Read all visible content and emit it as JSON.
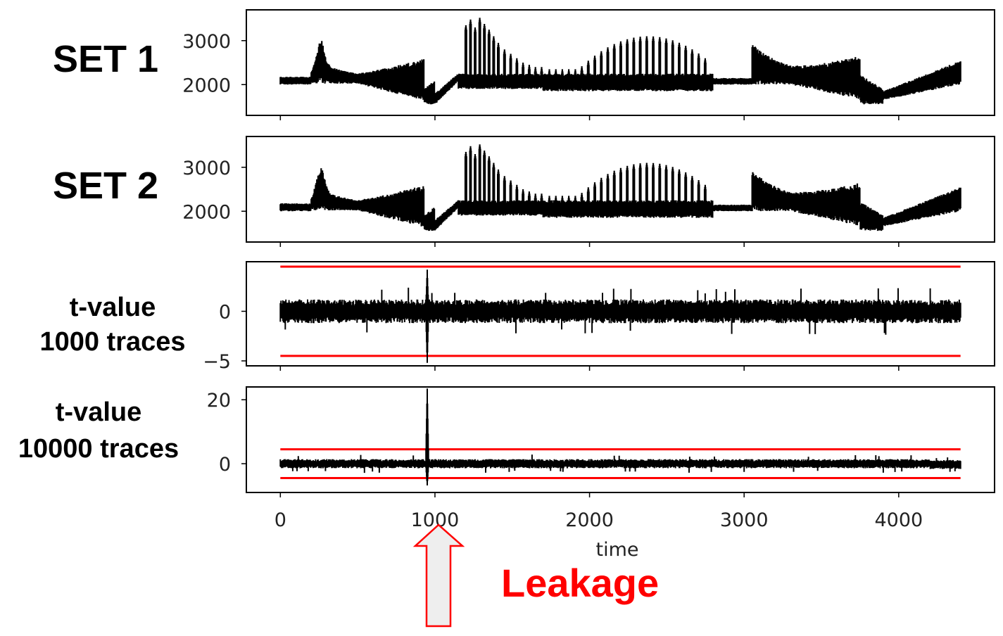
{
  "figure": {
    "x_axis_label": "time",
    "x_ticks": [
      "0",
      "1000",
      "2000",
      "3000",
      "4000"
    ],
    "annotation": {
      "text": "Leakage",
      "color": "#ff0000",
      "points_to_time": 1000
    },
    "colors": {
      "trace": "#000000",
      "threshold": "#ff0000",
      "arrow_fill": "#eeeeee",
      "arrow_stroke": "#ff0000"
    }
  },
  "rows": [
    {
      "label_lines": [
        "SET 1"
      ]
    },
    {
      "label_lines": [
        "SET 2"
      ]
    },
    {
      "label_lines": [
        "t-value",
        "1000 traces"
      ]
    },
    {
      "label_lines": [
        "t-value",
        "10000 traces"
      ]
    }
  ],
  "chart_data": [
    {
      "type": "line",
      "series": [
        {
          "values_summary": "power trace, baseline ~2050, peaks ~3500 near time 1200-1400"
        }
      ],
      "x_range": [
        0,
        4400
      ],
      "xlim": [
        -220,
        4620
      ],
      "ylim": [
        1300,
        3700
      ],
      "y_ticks": [
        "2000",
        "3000"
      ],
      "y_tick_values": [
        2000,
        3000
      ],
      "x_ticks": [
        0,
        1000,
        2000,
        3000,
        4000
      ],
      "thresholds": []
    },
    {
      "type": "line",
      "series": [
        {
          "values_summary": "power trace, nearly identical to SET 1"
        }
      ],
      "x_range": [
        0,
        4400
      ],
      "xlim": [
        -220,
        4620
      ],
      "ylim": [
        1300,
        3700
      ],
      "y_ticks": [
        "2000",
        "3000"
      ],
      "y_tick_values": [
        2000,
        3000
      ],
      "x_ticks": [
        0,
        1000,
        2000,
        3000,
        4000
      ],
      "thresholds": []
    },
    {
      "type": "line",
      "series": [
        {
          "values_summary": "t-value noise within about +/-1, spike to +4 and -5 near time 950"
        }
      ],
      "x_range": [
        0,
        4400
      ],
      "xlim": [
        -220,
        4620
      ],
      "ylim": [
        -5.5,
        5
      ],
      "y_ticks": [
        "0",
        "−5"
      ],
      "y_tick_values": [
        0,
        -5
      ],
      "x_ticks": [
        0,
        1000,
        2000,
        3000,
        4000
      ],
      "thresholds": [
        4.5,
        -4.5
      ]
    },
    {
      "type": "line",
      "series": [
        {
          "values_summary": "t-value noise within about +/-1, spike to +24 and -7 near time 950"
        }
      ],
      "x_range": [
        0,
        4400
      ],
      "xlim": [
        -220,
        4620
      ],
      "ylim": [
        -9,
        24
      ],
      "y_ticks": [
        "20",
        "0"
      ],
      "y_tick_values": [
        20,
        0
      ],
      "x_ticks": [
        0,
        1000,
        2000,
        3000,
        4000
      ],
      "thresholds": [
        4.5,
        -4.5
      ]
    }
  ]
}
